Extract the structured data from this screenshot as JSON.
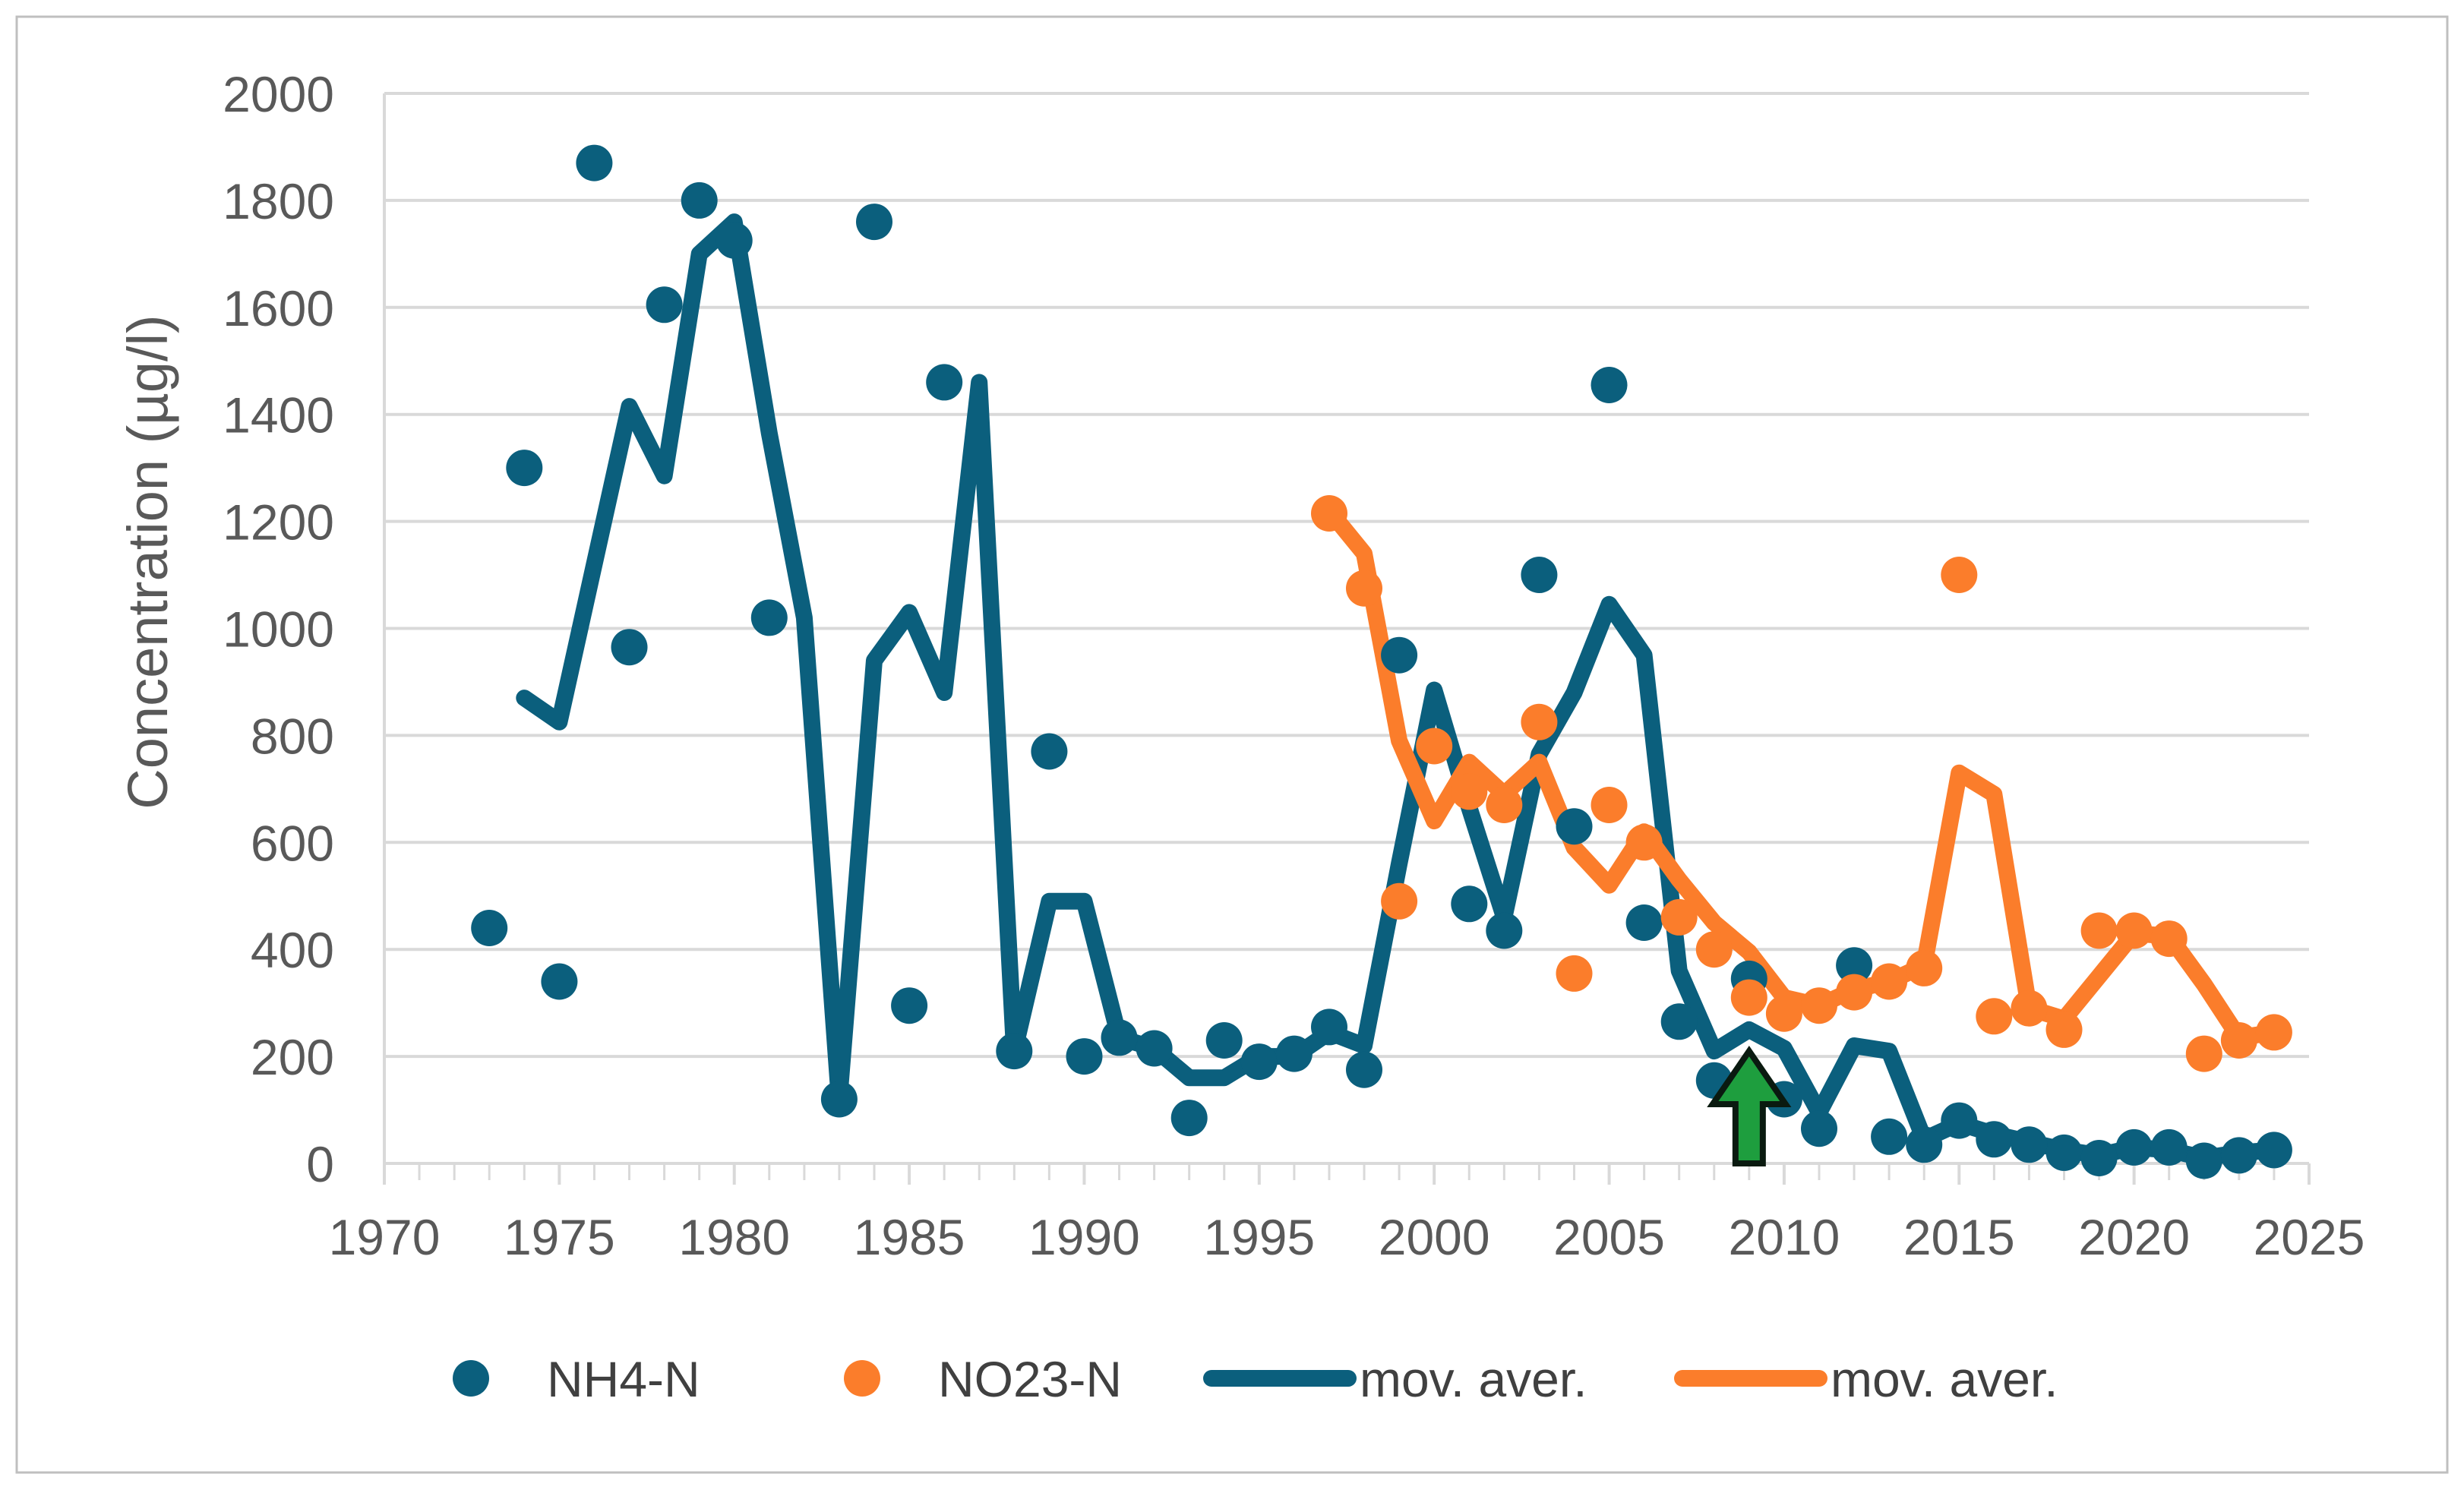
{
  "chart_data": {
    "type": "scatter",
    "title": "",
    "xlabel": "",
    "ylabel": "Concentration (µg/l)",
    "xlim": [
      1970,
      2025
    ],
    "ylim": [
      0,
      2000
    ],
    "x_ticks": [
      "1970",
      "1975",
      "1980",
      "1985",
      "1990",
      "1995",
      "2000",
      "2005",
      "2010",
      "2015",
      "2020",
      "2025"
    ],
    "y_ticks": [
      "0",
      "200",
      "400",
      "600",
      "800",
      "1000",
      "1200",
      "1400",
      "1600",
      "1800",
      "2000"
    ],
    "grid": "horizontal",
    "legend_position": "bottom",
    "series": [
      {
        "name": "NH4-N",
        "kind": "points",
        "color": "#0b5f7d",
        "points": [
          [
            1973,
            440
          ],
          [
            1974,
            1300
          ],
          [
            1975,
            340
          ],
          [
            1976,
            1870
          ],
          [
            1977,
            965
          ],
          [
            1978,
            1605
          ],
          [
            1979,
            1800
          ],
          [
            1980,
            1725
          ],
          [
            1981,
            1020
          ],
          [
            1983,
            120
          ],
          [
            1984,
            1760
          ],
          [
            1985,
            295
          ],
          [
            1986,
            1460
          ],
          [
            1988,
            210
          ],
          [
            1989,
            770
          ],
          [
            1990,
            200
          ],
          [
            1991,
            235
          ],
          [
            1992,
            215
          ],
          [
            1993,
            85
          ],
          [
            1994,
            230
          ],
          [
            1995,
            190
          ],
          [
            1996,
            205
          ],
          [
            1997,
            255
          ],
          [
            1998,
            175
          ],
          [
            1999,
            950
          ],
          [
            2001,
            485
          ],
          [
            2002,
            435
          ],
          [
            2003,
            1100
          ],
          [
            2004,
            630
          ],
          [
            2005,
            1455
          ],
          [
            2006,
            450
          ],
          [
            2007,
            265
          ],
          [
            2008,
            155
          ],
          [
            2009,
            345
          ],
          [
            2010,
            120
          ],
          [
            2011,
            65
          ],
          [
            2012,
            370
          ],
          [
            2013,
            50
          ],
          [
            2014,
            35
          ],
          [
            2015,
            80
          ],
          [
            2016,
            45
          ],
          [
            2017,
            35
          ],
          [
            2018,
            20
          ],
          [
            2019,
            10
          ],
          [
            2020,
            30
          ],
          [
            2021,
            30
          ],
          [
            2022,
            5
          ],
          [
            2023,
            15
          ],
          [
            2024,
            25
          ]
        ]
      },
      {
        "name": "NO23-N",
        "kind": "points",
        "color": "#fb7d2b",
        "points": [
          [
            1997,
            1215
          ],
          [
            1998,
            1075
          ],
          [
            1999,
            490
          ],
          [
            2000,
            780
          ],
          [
            2001,
            695
          ],
          [
            2002,
            670
          ],
          [
            2003,
            825
          ],
          [
            2004,
            355
          ],
          [
            2005,
            670
          ],
          [
            2006,
            600
          ],
          [
            2007,
            460
          ],
          [
            2008,
            400
          ],
          [
            2009,
            310
          ],
          [
            2010,
            280
          ],
          [
            2011,
            295
          ],
          [
            2012,
            320
          ],
          [
            2013,
            340
          ],
          [
            2014,
            365
          ],
          [
            2015,
            1100
          ],
          [
            2016,
            275
          ],
          [
            2017,
            290
          ],
          [
            2018,
            250
          ],
          [
            2019,
            435
          ],
          [
            2020,
            435
          ],
          [
            2021,
            420
          ],
          [
            2022,
            205
          ],
          [
            2023,
            230
          ],
          [
            2024,
            245
          ]
        ]
      },
      {
        "name": "mov. aver.",
        "kind": "line",
        "color": "#0b5f7d",
        "points": [
          [
            1974,
            870
          ],
          [
            1975,
            825
          ],
          [
            1976,
            1120
          ],
          [
            1977,
            1415
          ],
          [
            1978,
            1285
          ],
          [
            1979,
            1700
          ],
          [
            1980,
            1760
          ],
          [
            1981,
            1365
          ],
          [
            1982,
            1020
          ],
          [
            1983,
            120
          ],
          [
            1984,
            940
          ],
          [
            1985,
            1030
          ],
          [
            1986,
            880
          ],
          [
            1987,
            1460
          ],
          [
            1988,
            210
          ],
          [
            1989,
            490
          ],
          [
            1990,
            490
          ],
          [
            1991,
            235
          ],
          [
            1992,
            215
          ],
          [
            1993,
            160
          ],
          [
            1994,
            160
          ],
          [
            1995,
            200
          ],
          [
            1996,
            200
          ],
          [
            1997,
            245
          ],
          [
            1998,
            220
          ],
          [
            1999,
            560
          ],
          [
            2000,
            885
          ],
          [
            2001,
            665
          ],
          [
            2002,
            460
          ],
          [
            2003,
            765
          ],
          [
            2004,
            880
          ],
          [
            2005,
            1045
          ],
          [
            2006,
            950
          ],
          [
            2007,
            360
          ],
          [
            2008,
            210
          ],
          [
            2009,
            250
          ],
          [
            2010,
            215
          ],
          [
            2011,
            95
          ],
          [
            2012,
            220
          ],
          [
            2013,
            210
          ],
          [
            2014,
            45
          ],
          [
            2015,
            75
          ],
          [
            2016,
            55
          ],
          [
            2017,
            40
          ],
          [
            2018,
            25
          ],
          [
            2019,
            15
          ],
          [
            2020,
            30
          ],
          [
            2021,
            25
          ],
          [
            2022,
            10
          ],
          [
            2023,
            20
          ],
          [
            2024,
            25
          ]
        ]
      },
      {
        "name": "mov. aver.",
        "kind": "line",
        "color": "#fb7d2b",
        "points": [
          [
            1997,
            1220
          ],
          [
            1998,
            1140
          ],
          [
            1999,
            790
          ],
          [
            2000,
            640
          ],
          [
            2001,
            750
          ],
          [
            2002,
            690
          ],
          [
            2003,
            750
          ],
          [
            2004,
            590
          ],
          [
            2005,
            520
          ],
          [
            2006,
            620
          ],
          [
            2007,
            530
          ],
          [
            2008,
            450
          ],
          [
            2009,
            395
          ],
          [
            2010,
            310
          ],
          [
            2011,
            295
          ],
          [
            2012,
            325
          ],
          [
            2013,
            340
          ],
          [
            2014,
            370
          ],
          [
            2015,
            730
          ],
          [
            2016,
            690
          ],
          [
            2017,
            290
          ],
          [
            2018,
            270
          ],
          [
            2019,
            350
          ],
          [
            2020,
            430
          ],
          [
            2021,
            425
          ],
          [
            2022,
            335
          ],
          [
            2023,
            235
          ],
          [
            2024,
            245
          ]
        ]
      }
    ],
    "annotations": [
      {
        "type": "arrow",
        "x": 2009,
        "y_from": 0,
        "y_to": 210,
        "color": "#1e9e3e"
      }
    ]
  }
}
